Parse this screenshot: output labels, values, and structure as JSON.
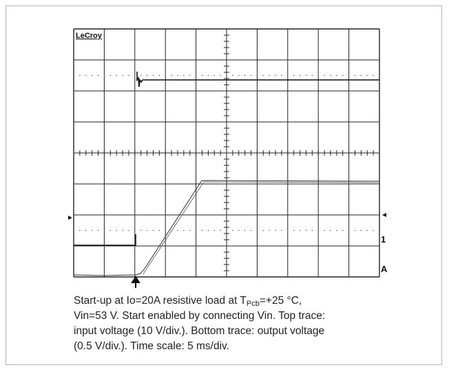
{
  "scope": {
    "brand": "LeCroy",
    "channel_marker": "1",
    "trigger_marker": "A"
  },
  "caption": {
    "line1_before": "Start-up at Io=20A resistive load at T",
    "line1_sub": "Pcb",
    "line1_after": "=+25 °C,",
    "lines": [
      "Vin=53 V. Start enabled by connecting Vin. Top trace:",
      "input voltage (10 V/div.). Bottom trace: output voltage",
      "(0.5 V/div.). Time scale: 5 ms/div."
    ]
  }
}
